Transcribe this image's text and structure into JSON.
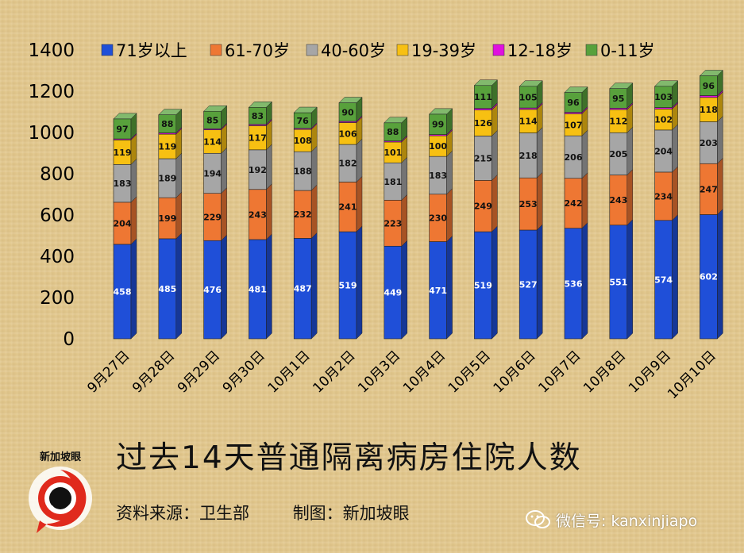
{
  "chart_data": {
    "type": "bar",
    "stacked": true,
    "title": "过去14天普通隔离病房住院人数",
    "categories": [
      "9月27日",
      "9月28日",
      "9月29日",
      "9月30日",
      "10月1日",
      "10月2日",
      "10月3日",
      "10月4日",
      "10月5日",
      "10月6日",
      "10月7日",
      "10月8日",
      "10月9日",
      "10月10日"
    ],
    "series": [
      {
        "name": "71岁以上",
        "color": "#1f4fd8",
        "values": [
          458,
          485,
          476,
          481,
          487,
          519,
          449,
          471,
          519,
          527,
          536,
          551,
          574,
          602
        ]
      },
      {
        "name": "61-70岁",
        "color": "#ee7733",
        "values": [
          204,
          199,
          229,
          243,
          232,
          241,
          223,
          230,
          249,
          253,
          242,
          243,
          234,
          247
        ]
      },
      {
        "name": "40-60岁",
        "color": "#a6a6a6",
        "values": [
          183,
          189,
          194,
          192,
          188,
          182,
          181,
          183,
          215,
          218,
          206,
          205,
          204,
          203
        ]
      },
      {
        "name": "19-39岁",
        "color": "#f7c012",
        "values": [
          119,
          119,
          114,
          117,
          108,
          106,
          101,
          100,
          126,
          114,
          107,
          112,
          102,
          118
        ]
      },
      {
        "name": "12-18岁",
        "color": "#e010e0",
        "values": [
          5,
          6,
          5,
          6,
          5,
          6,
          5,
          6,
          8,
          7,
          7,
          7,
          7,
          9
        ]
      },
      {
        "name": "0-11岁",
        "color": "#58a13c",
        "values": [
          97,
          88,
          85,
          83,
          76,
          90,
          88,
          99,
          111,
          105,
          96,
          95,
          103,
          96
        ]
      }
    ],
    "ylim": [
      0,
      1400
    ],
    "yticks": [
      0,
      200,
      400,
      600,
      800,
      1000,
      1200,
      1400
    ],
    "grid": false,
    "legend": "top"
  },
  "footer": {
    "source": "资料来源：卫生部",
    "maker": "制图：新加坡眼"
  },
  "logo": {
    "text": "新加坡眼"
  },
  "watermark": {
    "text": "微信号: kanxinjiapo"
  }
}
